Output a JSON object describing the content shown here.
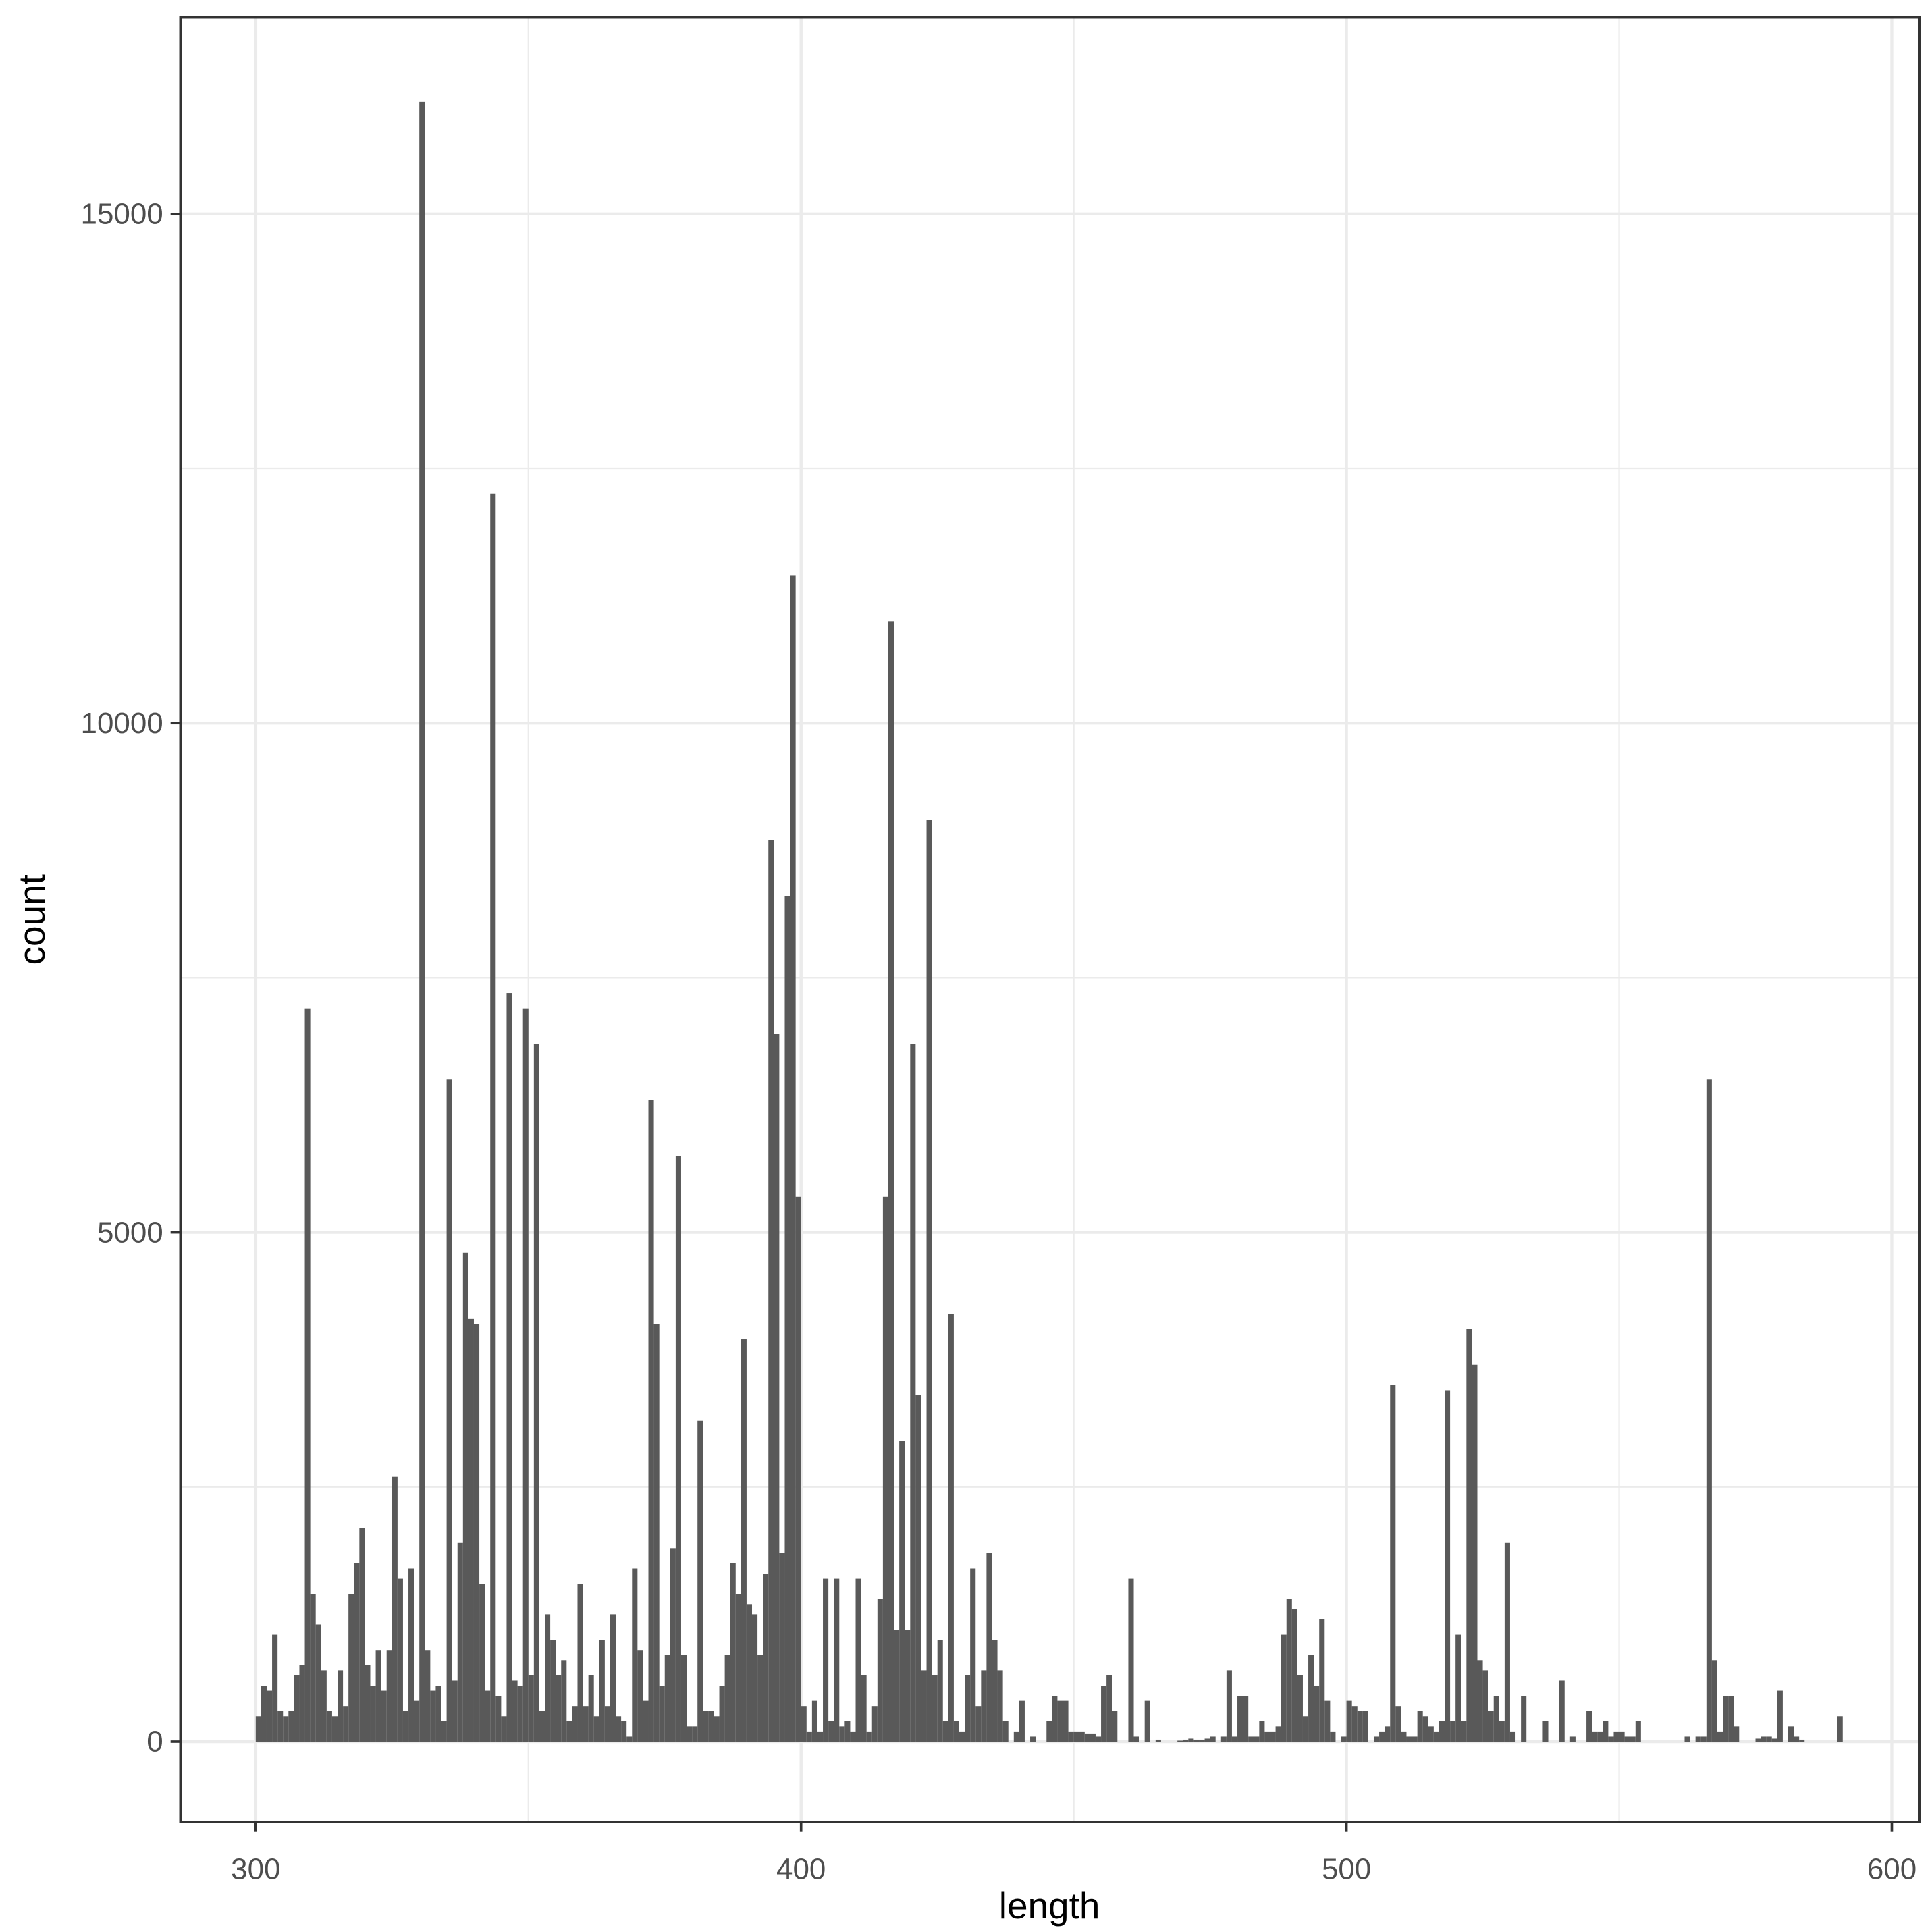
{
  "chart_data": {
    "type": "histogram",
    "xlabel": "length",
    "ylabel": "count",
    "color": "#595959",
    "grid": true,
    "xlim": [
      286.2,
      605.1
    ],
    "ylim": [
      -789,
      16930
    ],
    "xticks": [
      300,
      400,
      500,
      600
    ],
    "yticks": [
      0,
      5000,
      10000,
      15000
    ],
    "xminorticks": [
      350,
      450,
      550
    ],
    "yminorticks": [
      2500,
      7500,
      12500
    ],
    "bins": [
      300,
      301,
      302,
      303,
      304,
      305,
      306,
      307,
      308,
      309,
      310,
      311,
      312,
      313,
      314,
      315,
      316,
      317,
      318,
      319,
      320,
      321,
      322,
      323,
      324,
      325,
      326,
      327,
      328,
      329,
      330,
      331,
      332,
      333,
      334,
      335,
      336,
      337,
      338,
      339,
      340,
      341,
      342,
      343,
      344,
      345,
      346,
      347,
      348,
      349,
      350,
      351,
      352,
      353,
      354,
      355,
      356,
      357,
      358,
      359,
      360,
      361,
      362,
      363,
      364,
      365,
      366,
      367,
      368,
      369,
      370,
      371,
      372,
      373,
      374,
      375,
      376,
      377,
      378,
      379,
      380,
      381,
      382,
      383,
      384,
      385,
      386,
      387,
      388,
      389,
      390,
      391,
      392,
      393,
      394,
      395,
      396,
      397,
      398,
      399,
      400,
      401,
      402,
      403,
      404,
      405,
      406,
      407,
      408,
      409,
      410,
      411,
      412,
      413,
      414,
      415,
      416,
      417,
      418,
      419,
      420,
      421,
      422,
      423,
      424,
      425,
      426,
      427,
      428,
      429,
      430,
      431,
      432,
      433,
      434,
      435,
      436,
      437,
      438,
      439,
      440,
      441,
      442,
      443,
      444,
      445,
      446,
      447,
      448,
      449,
      450,
      451,
      452,
      453,
      454,
      455,
      456,
      457,
      458,
      459,
      460,
      461,
      462,
      463,
      464,
      465,
      466,
      467,
      468,
      469,
      470,
      471,
      472,
      473,
      474,
      475,
      476,
      477,
      478,
      479,
      480,
      481,
      482,
      483,
      484,
      485,
      486,
      487,
      488,
      489,
      490,
      491,
      492,
      493,
      494,
      495,
      496,
      497,
      498,
      499,
      500,
      501,
      502,
      503,
      504,
      505,
      506,
      507,
      508,
      509,
      510,
      511,
      512,
      513,
      514,
      515,
      516,
      517,
      518,
      519,
      520,
      521,
      522,
      523,
      524,
      525,
      526,
      527,
      528,
      529,
      530,
      531,
      532,
      533,
      534,
      535,
      536,
      537,
      538,
      539,
      540,
      541,
      542,
      543,
      544,
      545,
      546,
      547,
      548,
      549,
      550,
      551,
      552,
      553,
      554,
      555,
      556,
      557,
      558,
      559,
      560,
      561,
      562,
      563,
      564,
      565,
      566,
      567,
      568,
      569,
      570,
      571,
      572,
      573,
      574,
      575,
      576,
      577,
      578,
      579,
      580,
      581,
      582,
      583,
      584,
      585,
      586,
      587,
      588,
      589,
      590,
      591
    ],
    "counts": [
      250,
      550,
      500,
      1050,
      300,
      250,
      300,
      650,
      750,
      7200,
      1450,
      1150,
      700,
      300,
      250,
      700,
      350,
      1450,
      1750,
      2100,
      750,
      550,
      900,
      500,
      900,
      2600,
      1600,
      300,
      1700,
      400,
      16100,
      900,
      500,
      550,
      200,
      6500,
      600,
      1950,
      4800,
      4150,
      4100,
      1550,
      500,
      12250,
      450,
      250,
      7350,
      600,
      550,
      7200,
      650,
      6850,
      300,
      1250,
      1000,
      650,
      800,
      200,
      350,
      1550,
      350,
      650,
      250,
      1000,
      350,
      1250,
      250,
      200,
      50,
      1700,
      900,
      400,
      6300,
      4100,
      550,
      850,
      1900,
      5750,
      850,
      150,
      150,
      3150,
      300,
      300,
      250,
      550,
      850,
      1750,
      1450,
      3950,
      1350,
      1250,
      850,
      1650,
      8850,
      6950,
      1850,
      8300,
      11450,
      5350,
      350,
      100,
      400,
      100,
      1600,
      200,
      1600,
      150,
      200,
      100,
      1600,
      650,
      100,
      350,
      1400,
      5350,
      11000,
      1100,
      2950,
      1100,
      6850,
      3400,
      700,
      9050,
      650,
      1000,
      200,
      4200,
      200,
      100,
      650,
      1700,
      350,
      700,
      1850,
      1000,
      700,
      200,
      0,
      100,
      400,
      0,
      50,
      0,
      0,
      200,
      450,
      400,
      400,
      100,
      100,
      100,
      80,
      80,
      50,
      550,
      650,
      300,
      0,
      0,
      1600,
      50,
      0,
      400,
      0,
      20,
      0,
      0,
      0,
      10,
      20,
      30,
      20,
      20,
      30,
      50,
      0,
      50,
      700,
      50,
      450,
      450,
      50,
      50,
      200,
      100,
      100,
      150,
      1050,
      1400,
      1300,
      650,
      250,
      850,
      550,
      1200,
      400,
      100,
      0,
      50,
      400,
      350,
      300,
      300,
      0,
      50,
      100,
      150,
      3500,
      350,
      100,
      50,
      50,
      300,
      250,
      150,
      100,
      200,
      3450,
      200,
      1050,
      200,
      4050,
      3700,
      800,
      700,
      300,
      450,
      200,
      1950,
      100,
      0,
      450,
      0,
      0,
      0,
      200,
      0,
      0,
      600,
      0,
      50,
      0,
      0,
      300,
      100,
      100,
      200,
      50,
      100,
      100,
      50,
      50,
      200,
      0,
      0,
      0,
      0,
      0,
      0,
      0,
      0,
      50,
      0,
      50,
      50,
      6500,
      800,
      100,
      450,
      450,
      150,
      0,
      0,
      0,
      30,
      50,
      50,
      30,
      500,
      0,
      150,
      50,
      20,
      0,
      0,
      0,
      0,
      0,
      0,
      250
    ]
  }
}
